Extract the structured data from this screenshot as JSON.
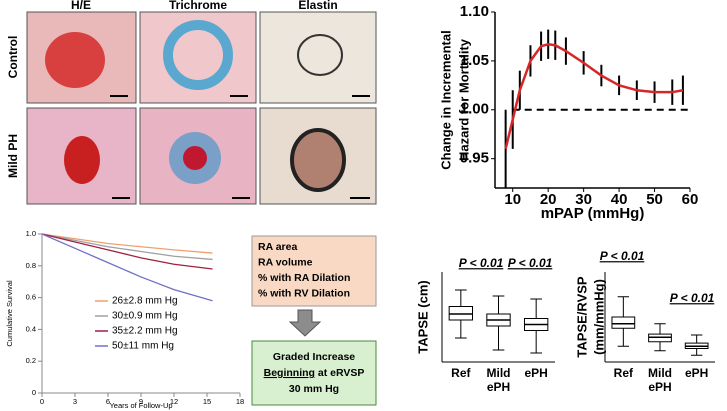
{
  "histology": {
    "columns": [
      "H/E",
      "Trichrome",
      "Elastin"
    ],
    "rows": [
      "Control",
      "Mild PH"
    ]
  },
  "diagram": {
    "measures": [
      "RA area",
      "RA volume",
      "% with RA Dilation",
      "% with RV Dilation"
    ],
    "result": [
      "Graded Increase",
      "Beginning at eRVSP",
      "30 mm Hg"
    ]
  },
  "chart_data": [
    {
      "type": "line",
      "xlabel": "mPAP (mmHg)",
      "ylabel": [
        "Change in Incremental",
        "Hazard for Mortality"
      ],
      "x": [
        8,
        10,
        12,
        15,
        18,
        20,
        22,
        25,
        30,
        35,
        40,
        45,
        50,
        55,
        58
      ],
      "series": [
        {
          "name": "Hazard",
          "color": "#d62728",
          "values": [
            0.96,
            0.99,
            1.02,
            1.05,
            1.065,
            1.067,
            1.066,
            1.06,
            1.048,
            1.035,
            1.025,
            1.02,
            1.018,
            1.018,
            1.02
          ],
          "errors": [
            0.04,
            0.03,
            0.02,
            0.016,
            0.015,
            0.015,
            0.015,
            0.014,
            0.012,
            0.011,
            0.01,
            0.01,
            0.011,
            0.013,
            0.015
          ]
        }
      ],
      "reference_line": 1,
      "xlim": [
        5,
        60
      ],
      "xticks": [
        10,
        20,
        30,
        40,
        50,
        60
      ],
      "ylim": [
        0.92,
        1.1
      ],
      "yticks": [
        0.95,
        {
          "value": 1,
          "label": "1.00"
        },
        1.05,
        {
          "value": 1.1,
          "label": "1.10"
        }
      ]
    },
    {
      "type": "line",
      "xlabel": "Years of Follow-Up",
      "ylabel": [
        "Cumulative Survival"
      ],
      "x": [
        0,
        3,
        6,
        9,
        12,
        15.5
      ],
      "series": [
        {
          "name": "26±2.8 mm Hg",
          "color": "#f0a070",
          "values": [
            1,
            0.97,
            0.94,
            0.92,
            0.9,
            0.88
          ]
        },
        {
          "name": "30±0.9 mm Hg",
          "color": "#a0a0a0",
          "values": [
            1,
            0.96,
            0.92,
            0.89,
            0.86,
            0.84
          ]
        },
        {
          "name": "35±2.2 mm Hg",
          "color": "#a02040",
          "values": [
            1,
            0.95,
            0.9,
            0.85,
            0.81,
            0.78
          ]
        },
        {
          "name": "50±11 mm Hg",
          "color": "#7070c8",
          "values": [
            1,
            0.91,
            0.82,
            0.73,
            0.65,
            0.58
          ]
        }
      ],
      "xlim": [
        0,
        18
      ],
      "xticks": [
        0,
        3,
        6,
        9,
        12,
        15,
        18
      ],
      "ylim": [
        0,
        1
      ],
      "yticks": [
        0,
        0.2,
        0.4,
        0.6,
        0.8,
        {
          "value": 1,
          "label": "1.0"
        }
      ]
    },
    {
      "type": "box",
      "ylabel": [
        "TAPSE (cm)"
      ],
      "categories": [
        "Ref",
        "Mild ePH",
        "ePH"
      ],
      "boxes": [
        {
          "whisker_low": 1.3,
          "q1": 1.9,
          "median": 2.1,
          "q3": 2.35,
          "whisker_high": 2.9
        },
        {
          "whisker_low": 0.9,
          "q1": 1.7,
          "median": 1.9,
          "q3": 2.1,
          "whisker_high": 2.7
        },
        {
          "whisker_low": 0.8,
          "q1": 1.55,
          "median": 1.75,
          "q3": 1.95,
          "whisker_high": 2.6
        }
      ],
      "annotations": [
        "P < 0.01",
        "P < 0.01"
      ],
      "ylim": [
        0.5,
        3.5
      ]
    },
    {
      "type": "box",
      "ylabel": [
        "TAPSE/RVSP",
        "(mm/mmHg)"
      ],
      "categories": [
        "Ref",
        "Mild ePH",
        "ePH"
      ],
      "boxes": [
        {
          "whisker_low": 0.35,
          "q1": 0.75,
          "median": 0.85,
          "q3": 1.0,
          "whisker_high": 1.45
        },
        {
          "whisker_low": 0.25,
          "q1": 0.45,
          "median": 0.55,
          "q3": 0.62,
          "whisker_high": 0.85
        },
        {
          "whisker_low": 0.15,
          "q1": 0.3,
          "median": 0.35,
          "q3": 0.42,
          "whisker_high": 0.6
        }
      ],
      "annotations": [
        "P < 0.01",
        "P < 0.01"
      ],
      "ylim": [
        0,
        2
      ]
    }
  ]
}
